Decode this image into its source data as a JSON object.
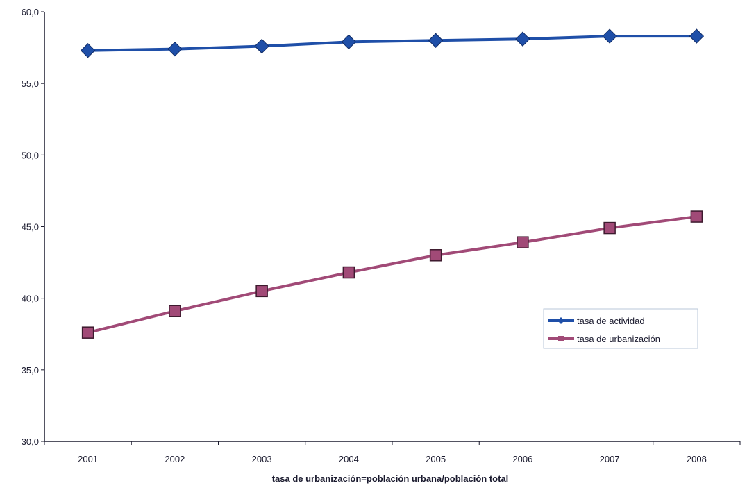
{
  "chart_data": {
    "type": "line",
    "title": "",
    "xlabel": "tasa de urbanización=población urbana/población total",
    "ylabel": "",
    "categories": [
      "2001",
      "2002",
      "2003",
      "2004",
      "2005",
      "2006",
      "2007",
      "2008"
    ],
    "yticks": [
      "30,0",
      "35,0",
      "40,0",
      "45,0",
      "50,0",
      "55,0",
      "60,0"
    ],
    "ylim": [
      30,
      60
    ],
    "grid": false,
    "legend_position": "right",
    "series": [
      {
        "name": "tasa de actividad",
        "color": "#1f4fa8",
        "marker": "diamond",
        "values": [
          57.3,
          57.4,
          57.6,
          57.9,
          58.0,
          58.1,
          58.3,
          58.3
        ]
      },
      {
        "name": "tasa de urbanización",
        "color": "#a14a77",
        "marker": "square",
        "values": [
          37.6,
          39.1,
          40.5,
          41.8,
          43.0,
          43.9,
          44.9,
          45.7
        ]
      }
    ]
  }
}
